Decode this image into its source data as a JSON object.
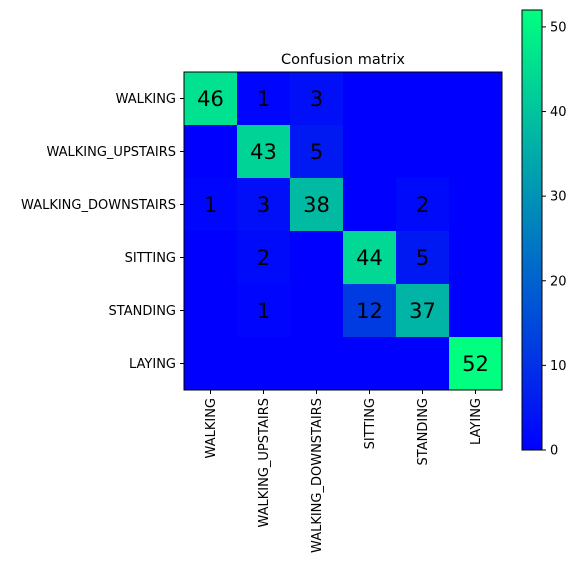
{
  "chart_data": {
    "type": "heatmap",
    "title": "Confusion matrix",
    "row_labels": [
      "WALKING",
      "WALKING_UPSTAIRS",
      "WALKING_DOWNSTAIRS",
      "SITTING",
      "STANDING",
      "LAYING"
    ],
    "col_labels": [
      "WALKING",
      "WALKING_UPSTAIRS",
      "WALKING_DOWNSTAIRS",
      "SITTING",
      "STANDING",
      "LAYING"
    ],
    "values": [
      [
        46,
        1,
        3,
        0,
        0,
        0
      ],
      [
        0,
        43,
        5,
        0,
        0,
        0
      ],
      [
        1,
        3,
        38,
        0,
        2,
        0
      ],
      [
        0,
        2,
        0,
        44,
        5,
        0
      ],
      [
        0,
        1,
        0,
        12,
        37,
        0
      ],
      [
        0,
        0,
        0,
        0,
        0,
        52
      ]
    ],
    "show_zero_values": false,
    "colorbar": {
      "min": 0,
      "max": 52,
      "ticks": [
        0,
        10,
        20,
        30,
        40,
        50
      ],
      "colormap": "winter",
      "color_low": "#0000ff",
      "color_high": "#00ff80"
    },
    "grid": false,
    "legend": "none"
  }
}
